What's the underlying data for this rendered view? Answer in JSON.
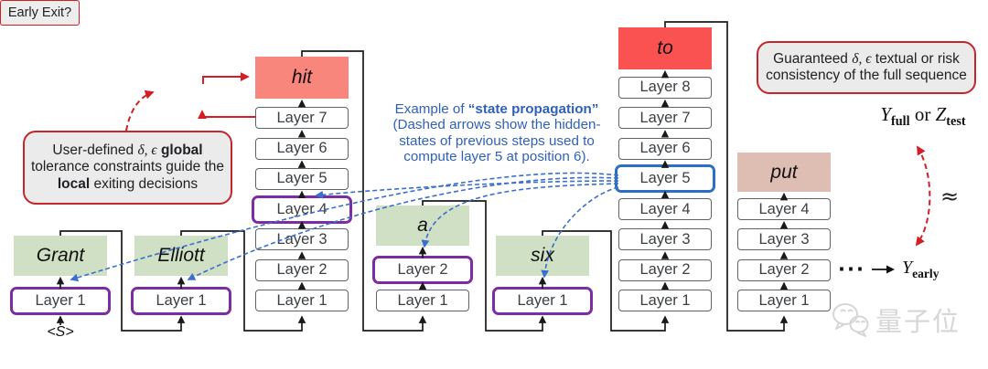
{
  "figure": {
    "columns": [
      {
        "token": "Grant",
        "style": "green",
        "input_token": "<S>",
        "layers": [
          "Layer 1"
        ],
        "highlight": {
          "layer": 1,
          "color": "purple"
        }
      },
      {
        "token": "Elliott",
        "style": "green",
        "layers": [
          "Layer 1"
        ],
        "highlight": {
          "layer": 1,
          "color": "purple"
        }
      },
      {
        "token": "hit",
        "style": "salmon",
        "layers": [
          "Layer 1",
          "Layer 2",
          "Layer 3",
          "Layer 4",
          "Layer 5",
          "Layer 6",
          "Layer 7"
        ],
        "highlight": {
          "layer": 4,
          "color": "purple"
        }
      },
      {
        "token": "a",
        "style": "green",
        "layers": [
          "Layer 1",
          "Layer 2"
        ],
        "highlight": {
          "layer": 2,
          "color": "purple"
        }
      },
      {
        "token": "six",
        "style": "green",
        "layers": [
          "Layer 1"
        ],
        "highlight": {
          "layer": 1,
          "color": "purple"
        }
      },
      {
        "token": "to",
        "style": "red",
        "layers": [
          "Layer 1",
          "Layer 2",
          "Layer 3",
          "Layer 4",
          "Layer 5",
          "Layer 6",
          "Layer 7",
          "Layer 8"
        ],
        "highlight": {
          "layer": 5,
          "color": "blue"
        }
      },
      {
        "token": "put",
        "style": "tan",
        "layers": [
          "Layer 1",
          "Layer 2",
          "Layer 3",
          "Layer 4"
        ],
        "highlight": null
      }
    ],
    "callout_left": {
      "line1_pre": "User-defined ",
      "line1_greek": "δ, ϵ",
      "line1_post": " global",
      "line2": "tolerance constraints guide the",
      "line3_bold": "local",
      "line3_rest": " exiting decisions"
    },
    "early_exit_label": "Early Exit?",
    "callout_right": {
      "line1_pre": "Guaranteed ",
      "line1_greek": "δ, ϵ",
      "line1_post": " textual or risk",
      "line2": "consistency of the full sequence"
    },
    "annotation": {
      "line1_pre": "Example of ",
      "line1_bold": "“state propagation”",
      "line2": "(Dashed arrows show the hidden-",
      "line3": "states of previous steps used to",
      "line4": "compute layer 5 at position 6)."
    },
    "math": {
      "y_full_var": "Y",
      "y_full_sub": "full",
      "or_text": " or ",
      "z_test_var": "Z",
      "z_test_sub": "test",
      "approx": "≈",
      "dots": "···",
      "y_early_var": "Y",
      "y_early_sub": "early"
    },
    "watermark_text": "量子位",
    "colors": {
      "green": "#cfe0c4",
      "salmon": "#f9867d",
      "red": "#fa5151",
      "tan": "#debdb2",
      "purple": "#7b2da1",
      "blue": "#2b70c4",
      "blue_dash": "#3a6fce",
      "blue_text": "#3061ba",
      "red_accent": "#d21e24",
      "box_border": "#5f6368"
    }
  }
}
